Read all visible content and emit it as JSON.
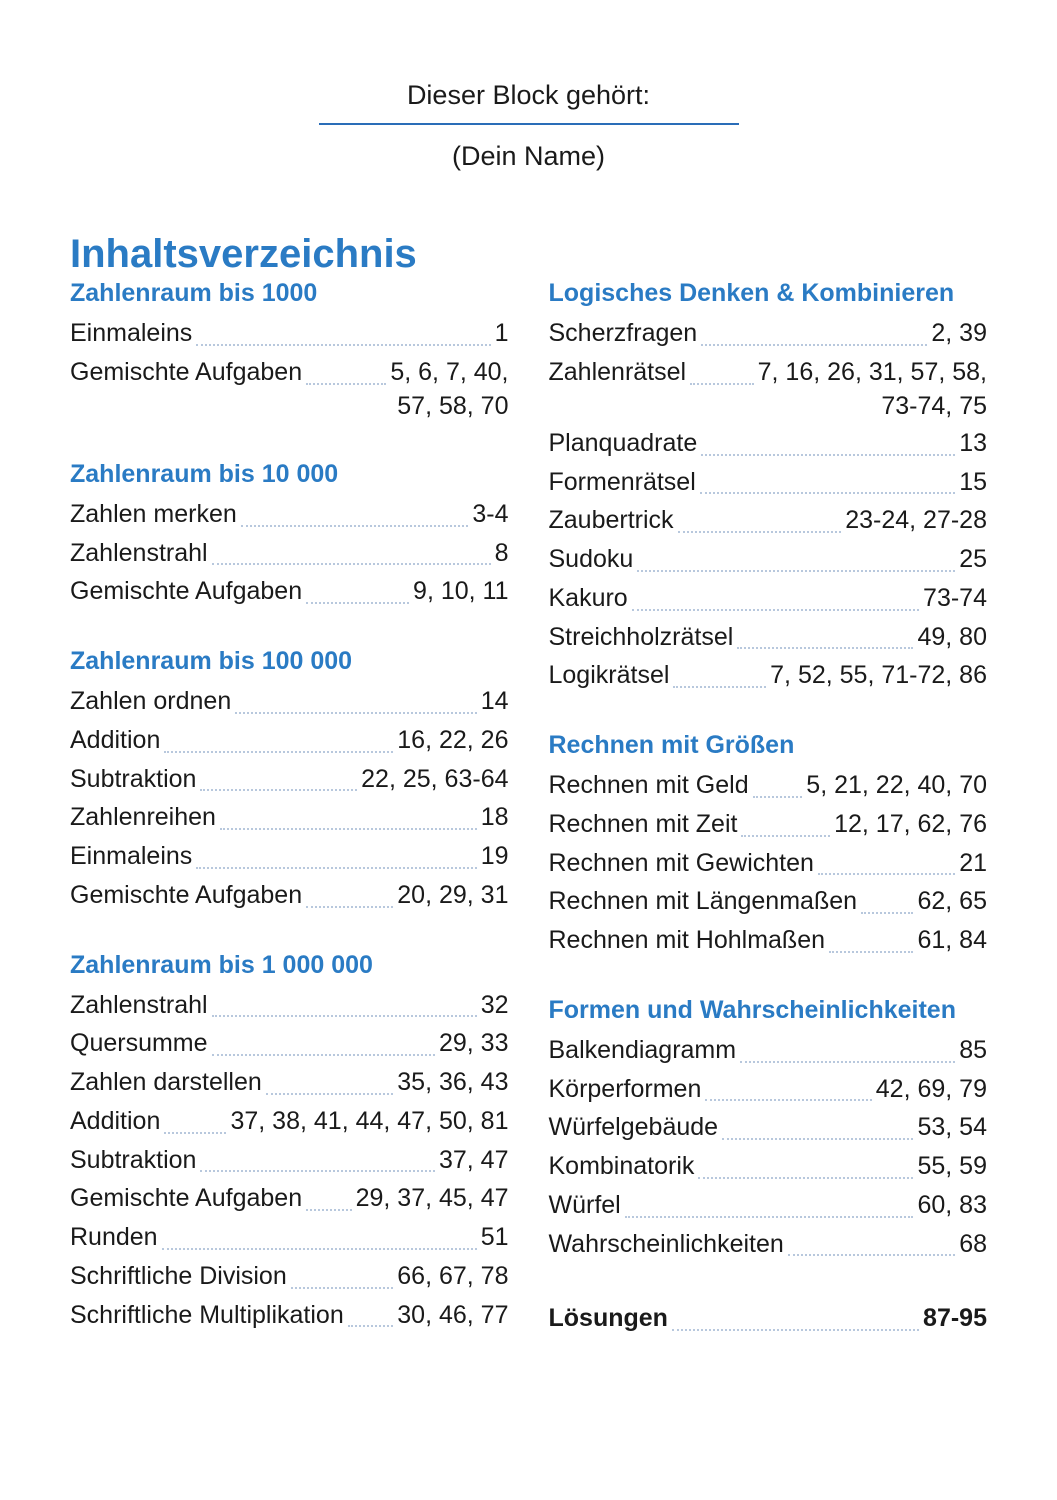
{
  "header": {
    "owner_label": "Dieser Block gehört:",
    "name_hint": "(Dein Name)"
  },
  "main_title": "Inhaltsverzeichnis",
  "colors": {
    "accent": "#2a7bc4",
    "text": "#1a1a1a",
    "dot": "#b8c8dd",
    "line": "#2a6db8",
    "bg": "#ffffff"
  },
  "typography": {
    "body_fontsize": 25,
    "title_fontsize": 40,
    "section_fontsize": 25
  },
  "left": [
    {
      "title": "Zahlenraum bis 1000",
      "items": [
        {
          "label": "Einmaleins",
          "pages": "1"
        },
        {
          "label": "Gemischte Aufgaben",
          "pages": "5, 6, 7, 40,",
          "cont": "57, 58, 70"
        }
      ]
    },
    {
      "title": "Zahlenraum bis 10 000",
      "items": [
        {
          "label": "Zahlen merken",
          "pages": "3-4"
        },
        {
          "label": "Zahlenstrahl",
          "pages": "8"
        },
        {
          "label": "Gemischte Aufgaben",
          "pages": "9, 10, 11"
        }
      ]
    },
    {
      "title": "Zahlenraum bis 100 000",
      "items": [
        {
          "label": "Zahlen ordnen",
          "pages": "14"
        },
        {
          "label": "Addition",
          "pages": "16, 22, 26"
        },
        {
          "label": "Subtraktion",
          "pages": "22, 25, 63-64"
        },
        {
          "label": "Zahlenreihen",
          "pages": "18"
        },
        {
          "label": "Einmaleins",
          "pages": "19"
        },
        {
          "label": "Gemischte Aufgaben",
          "pages": "20, 29, 31"
        }
      ]
    },
    {
      "title": "Zahlenraum bis 1 000 000",
      "items": [
        {
          "label": "Zahlenstrahl",
          "pages": "32"
        },
        {
          "label": "Quersumme",
          "pages": "29, 33"
        },
        {
          "label": "Zahlen darstellen",
          "pages": "35, 36, 43"
        },
        {
          "label": "Addition",
          "pages": "37, 38, 41, 44, 47, 50, 81"
        },
        {
          "label": "Subtraktion",
          "pages": "37, 47"
        },
        {
          "label": "Gemischte Aufgaben",
          "pages": "29, 37, 45, 47"
        },
        {
          "label": "Runden",
          "pages": "51"
        },
        {
          "label": "Schriftliche Division",
          "pages": "66, 67, 78"
        },
        {
          "label": "Schriftliche Multiplikation",
          "pages": "30, 46, 77"
        }
      ]
    }
  ],
  "right": [
    {
      "title": "Logisches Denken & Kombinieren",
      "items": [
        {
          "label": "Scherzfragen",
          "pages": "2, 39"
        },
        {
          "label": "Zahlenrätsel",
          "pages": "7, 16, 26, 31, 57, 58,",
          "cont": "73-74, 75"
        },
        {
          "label": "Planquadrate",
          "pages": "13"
        },
        {
          "label": "Formenrätsel",
          "pages": "15"
        },
        {
          "label": "Zaubertrick",
          "pages": "23-24, 27-28"
        },
        {
          "label": "Sudoku",
          "pages": "25"
        },
        {
          "label": "Kakuro",
          "pages": "73-74"
        },
        {
          "label": "Streichholzrätsel",
          "pages": "49, 80"
        },
        {
          "label": "Logikrätsel",
          "pages": "7, 52, 55, 71-72, 86"
        }
      ]
    },
    {
      "title": "Rechnen mit Größen",
      "items": [
        {
          "label": "Rechnen mit Geld",
          "pages": "5, 21, 22, 40, 70"
        },
        {
          "label": "Rechnen mit Zeit",
          "pages": "12, 17, 62, 76"
        },
        {
          "label": "Rechnen mit Gewichten",
          "pages": "21"
        },
        {
          "label": "Rechnen mit Längenmaßen",
          "pages": "62, 65"
        },
        {
          "label": "Rechnen mit Hohlmaßen",
          "pages": "61, 84"
        }
      ]
    },
    {
      "title": "Formen und Wahrscheinlichkeiten",
      "items": [
        {
          "label": "Balkendiagramm",
          "pages": "85"
        },
        {
          "label": "Körperformen",
          "pages": "42, 69, 79"
        },
        {
          "label": "Würfelgebäude",
          "pages": "53, 54"
        },
        {
          "label": "Kombinatorik",
          "pages": "55, 59"
        },
        {
          "label": "Würfel",
          "pages": "60, 83"
        },
        {
          "label": "Wahrscheinlichkeiten",
          "pages": "68"
        }
      ]
    },
    {
      "title": "",
      "items": [
        {
          "label": "Lösungen",
          "pages": "87-95",
          "bold": true
        }
      ]
    }
  ]
}
